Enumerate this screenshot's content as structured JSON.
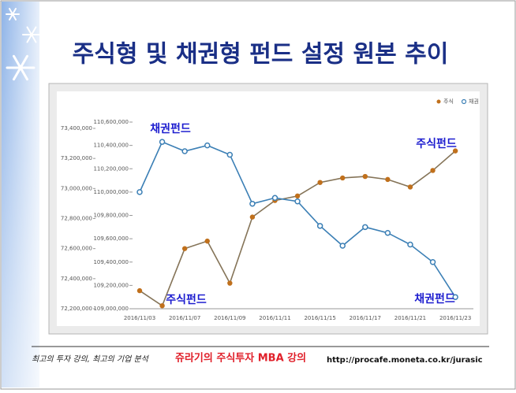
{
  "chart_data": {
    "type": "line",
    "title": "주식형 및 채권형 펀드 설정 원본 추이",
    "categories": [
      "2016/11/03",
      null,
      "2016/11/07",
      null,
      "2016/11/09",
      null,
      "2016/11/11",
      null,
      "2016/11/15",
      null,
      "2016/11/17",
      null,
      "2016/11/21",
      null,
      "2016/11/23"
    ],
    "series": [
      {
        "name": "주식",
        "color": "#c0701c",
        "axis": "y",
        "values": [
          72320000,
          72220000,
          72600000,
          72650000,
          72370000,
          72810000,
          72920000,
          72950000,
          73040000,
          73070000,
          73080000,
          73060000,
          73010000,
          73120000,
          73250000
        ]
      },
      {
        "name": "채권",
        "color": "#3b7fb5",
        "axis": "y2",
        "values": [
          110000000,
          110430000,
          110350000,
          110400000,
          110320000,
          109900000,
          109950000,
          109920000,
          109710000,
          109540000,
          109700000,
          109650000,
          109550000,
          109400000,
          109100000
        ]
      }
    ],
    "ylim": [
      72200000,
      73400000
    ],
    "yticks": [
      {
        "value": 72200000,
        "label": "72,200,000"
      },
      {
        "value": 72400000,
        "label": "72,400,000"
      },
      {
        "value": 72600000,
        "label": "72,600,000"
      },
      {
        "value": 72800000,
        "label": "72,800,000"
      },
      {
        "value": 73000000,
        "label": "73,000,000"
      },
      {
        "value": 73200000,
        "label": "73,200,000"
      },
      {
        "value": 73400000,
        "label": "73,400,000"
      }
    ],
    "y2lim": [
      109000000,
      110600000
    ],
    "y2ticks": [
      {
        "value": 109000000,
        "label": "109,000,000"
      },
      {
        "value": 109200000,
        "label": "109,200,000"
      },
      {
        "value": 109400000,
        "label": "109,400,000"
      },
      {
        "value": 109600000,
        "label": "109,600,000"
      },
      {
        "value": 109800000,
        "label": "109,800,000"
      },
      {
        "value": 110000000,
        "label": "110,000,000"
      },
      {
        "value": 110200000,
        "label": "110,200,000"
      },
      {
        "value": 110400000,
        "label": "110,400,000"
      },
      {
        "value": 110600000,
        "label": "110,600,000"
      }
    ],
    "legend": "top-right",
    "annotations": [
      "채권펀드",
      "주식펀드",
      "주식펀드",
      "채권펀드"
    ],
    "footer": {
      "slogan": "최고의 투자 강의, 최고의 기업 분석",
      "brand": "쥬라기의 주식투자 MBA 강의",
      "url": "http://procafe.moneta.co.kr/jurasic"
    }
  }
}
